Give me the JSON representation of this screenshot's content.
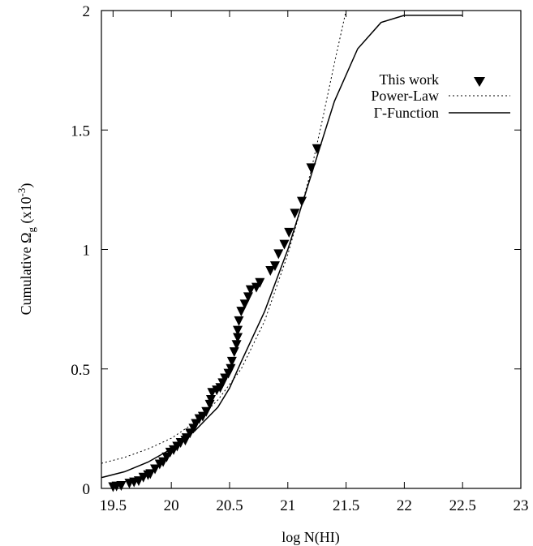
{
  "chart_data": {
    "type": "scatter",
    "xlabel": "log N(HI)",
    "ylabel": {
      "prefix": "Cumulative Ω",
      "subscript": "g",
      "suffix_open": " (x10",
      "superscript": "-3",
      "suffix_close": ")"
    },
    "xlim": [
      19.4,
      23
    ],
    "ylim": [
      0,
      2
    ],
    "xticks": [
      19.5,
      20,
      20.5,
      21,
      21.5,
      22,
      22.5,
      23
    ],
    "xtick_labels": [
      "19.5",
      "20",
      "20.5",
      "21",
      "21.5",
      "22",
      "22.5",
      "23"
    ],
    "yticks": [
      0,
      0.5,
      1,
      1.5,
      2
    ],
    "ytick_labels": [
      "0",
      "0.5",
      "1",
      "1.5",
      "2"
    ],
    "grid": false,
    "legend_position": "top-right",
    "legend": [
      "This work",
      "Power-Law",
      "Γ-Function"
    ],
    "series": [
      {
        "name": "This work",
        "kind": "points",
        "marker": "down-triangle",
        "points": [
          [
            19.5,
            0.005
          ],
          [
            19.53,
            0.008
          ],
          [
            19.57,
            0.01
          ],
          [
            19.64,
            0.02
          ],
          [
            19.68,
            0.025
          ],
          [
            19.72,
            0.03
          ],
          [
            19.76,
            0.045
          ],
          [
            19.8,
            0.055
          ],
          [
            19.82,
            0.06
          ],
          [
            19.86,
            0.08
          ],
          [
            19.9,
            0.1
          ],
          [
            19.93,
            0.11
          ],
          [
            19.96,
            0.13
          ],
          [
            19.99,
            0.15
          ],
          [
            20.02,
            0.16
          ],
          [
            20.05,
            0.175
          ],
          [
            20.08,
            0.19
          ],
          [
            20.12,
            0.2
          ],
          [
            20.13,
            0.21
          ],
          [
            20.16,
            0.23
          ],
          [
            20.19,
            0.25
          ],
          [
            20.21,
            0.27
          ],
          [
            20.24,
            0.29
          ],
          [
            20.27,
            0.3
          ],
          [
            20.3,
            0.32
          ],
          [
            20.33,
            0.35
          ],
          [
            20.34,
            0.37
          ],
          [
            20.35,
            0.4
          ],
          [
            20.39,
            0.41
          ],
          [
            20.42,
            0.42
          ],
          [
            20.44,
            0.44
          ],
          [
            20.46,
            0.46
          ],
          [
            20.49,
            0.48
          ],
          [
            20.51,
            0.5
          ],
          [
            20.52,
            0.53
          ],
          [
            20.54,
            0.57
          ],
          [
            20.56,
            0.6
          ],
          [
            20.57,
            0.63
          ],
          [
            20.57,
            0.66
          ],
          [
            20.58,
            0.7
          ],
          [
            20.6,
            0.74
          ],
          [
            20.63,
            0.77
          ],
          [
            20.66,
            0.8
          ],
          [
            20.68,
            0.83
          ],
          [
            20.73,
            0.84
          ],
          [
            20.76,
            0.86
          ],
          [
            20.85,
            0.91
          ],
          [
            20.89,
            0.93
          ],
          [
            20.92,
            0.98
          ],
          [
            20.97,
            1.02
          ],
          [
            21.01,
            1.07
          ],
          [
            21.06,
            1.15
          ],
          [
            21.12,
            1.2
          ],
          [
            21.2,
            1.34
          ],
          [
            21.25,
            1.42
          ]
        ]
      },
      {
        "name": "Power-Law",
        "kind": "line",
        "style": "dotted",
        "points": [
          [
            19.4,
            0.105
          ],
          [
            19.6,
            0.13
          ],
          [
            19.8,
            0.165
          ],
          [
            20.0,
            0.21
          ],
          [
            20.2,
            0.275
          ],
          [
            20.4,
            0.37
          ],
          [
            20.6,
            0.5
          ],
          [
            20.8,
            0.7
          ],
          [
            21.0,
            0.98
          ],
          [
            21.1,
            1.15
          ],
          [
            21.2,
            1.33
          ],
          [
            21.3,
            1.55
          ],
          [
            21.4,
            1.78
          ],
          [
            21.5,
            2.0
          ]
        ]
      },
      {
        "name": "Γ-Function",
        "kind": "line",
        "style": "solid",
        "points": [
          [
            19.4,
            0.045
          ],
          [
            19.6,
            0.07
          ],
          [
            19.8,
            0.11
          ],
          [
            20.0,
            0.165
          ],
          [
            20.2,
            0.24
          ],
          [
            20.4,
            0.34
          ],
          [
            20.5,
            0.42
          ],
          [
            20.6,
            0.53
          ],
          [
            20.8,
            0.74
          ],
          [
            21.0,
            1.0
          ],
          [
            21.2,
            1.31
          ],
          [
            21.4,
            1.62
          ],
          [
            21.6,
            1.84
          ],
          [
            21.8,
            1.95
          ],
          [
            22.0,
            1.98
          ],
          [
            22.5,
            1.98
          ]
        ]
      }
    ]
  }
}
